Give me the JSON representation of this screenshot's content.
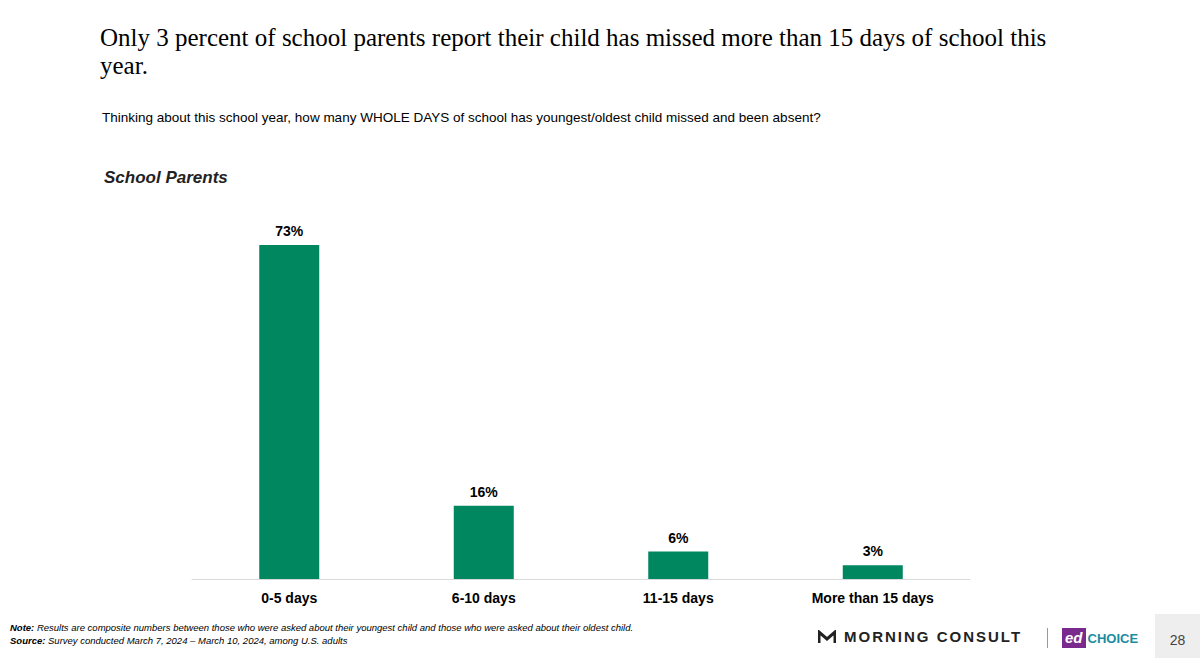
{
  "chart_data": {
    "type": "bar",
    "title": "Only 3 percent of school parents report their child has missed more than 15 days of school this year.",
    "subtitle": "Thinking about this school year, how many WHOLE DAYS of school has youngest/oldest child missed and been absent?",
    "panel_title": "School Parents",
    "categories": [
      "0-5 days",
      "6-10 days",
      "11-15 days",
      "More than 15 days"
    ],
    "values": [
      73,
      16,
      6,
      3
    ],
    "value_labels": [
      "73%",
      "16%",
      "6%",
      "3%"
    ],
    "color": "#00875f",
    "ylim": [
      0,
      80
    ],
    "yticks": [
      0,
      80
    ],
    "grid": false,
    "data_labels": true,
    "tick_labels": "x",
    "note_label": "Note:",
    "note": "Results are composite numbers between those who were asked about their youngest child and those who were asked about their oldest child.",
    "source_label": "Source:",
    "source": "Survey conducted March 7, 2024 – March 10, 2024, among U.S. adults",
    "logos": [
      "MORNING CONSULT",
      "ed",
      "CHOICE"
    ],
    "page_number": "28"
  }
}
